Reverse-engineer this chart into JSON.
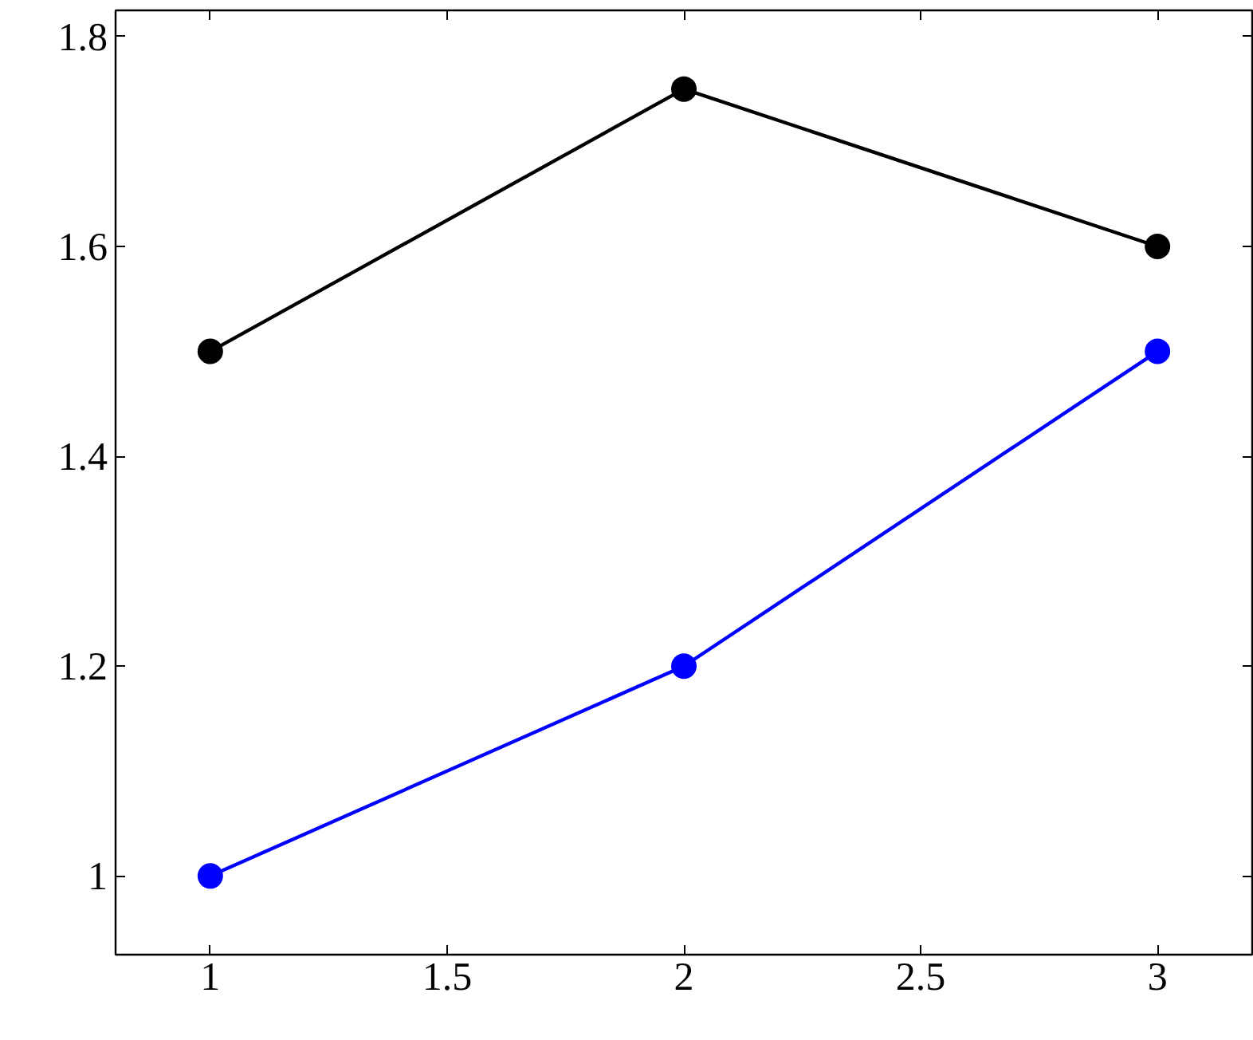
{
  "chart_data": {
    "type": "line",
    "marker": "circle",
    "line_style": "solid",
    "grid": false,
    "x": [
      1,
      2,
      3
    ],
    "series": [
      {
        "color": "#000000",
        "values": [
          1.5,
          1.75,
          1.6
        ]
      },
      {
        "color": "#0000ff",
        "values": [
          1.0,
          1.2,
          1.5
        ]
      }
    ],
    "xlim": [
      0.8,
      3.2
    ],
    "xticks": [
      1,
      1.5,
      2,
      2.5,
      3
    ],
    "ylim": [
      0.925,
      1.825
    ],
    "yticks": [
      1,
      1.2,
      1.4,
      1.6,
      1.8
    ]
  }
}
